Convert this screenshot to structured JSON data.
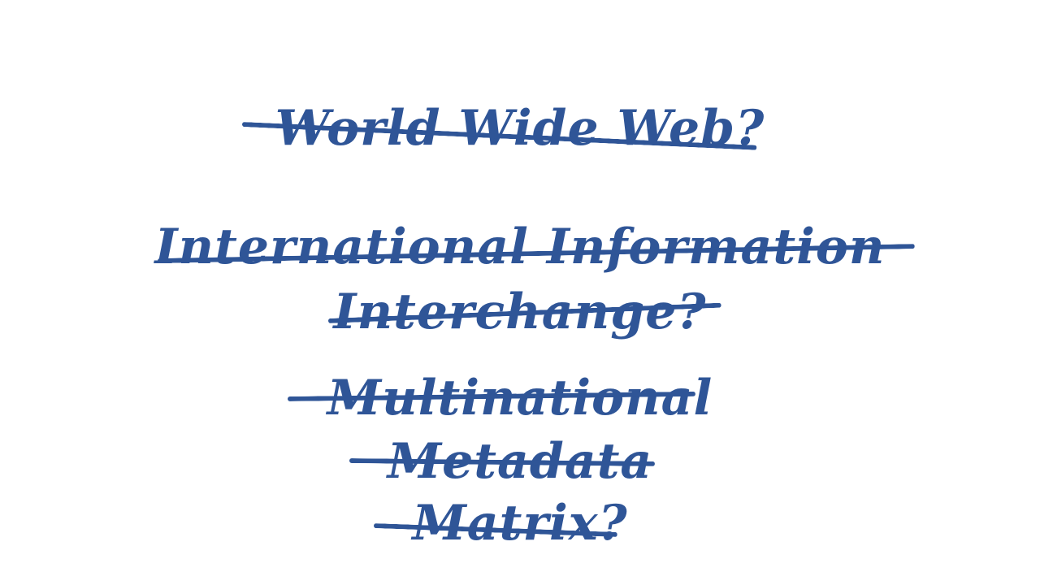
{
  "ink_color": "#2f5597",
  "background": "#ffffff",
  "phrases": [
    {
      "text": "World Wide Web?"
    },
    {
      "text": "International Information"
    },
    {
      "text": "Interchange?"
    },
    {
      "text": "Multinational"
    },
    {
      "text": "Metadata"
    },
    {
      "text": "Matrix?"
    }
  ],
  "all_struck_through": true
}
